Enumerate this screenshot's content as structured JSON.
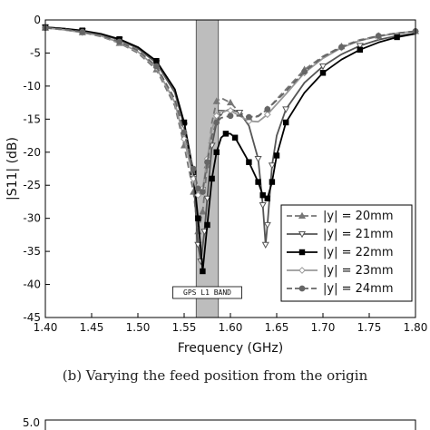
{
  "chart_data": {
    "type": "line",
    "xlabel": "Frequency (GHz)",
    "ylabel": "|S11| (dB)",
    "xlim": [
      1.4,
      1.8
    ],
    "ylim": [
      -45,
      0
    ],
    "xticks": [
      "1.40",
      "1.45",
      "1.50",
      "1.55",
      "1.60",
      "1.65",
      "1.70",
      "1.75",
      "1.80"
    ],
    "yticks": [
      "0",
      "-5",
      "-10",
      "-15",
      "-20",
      "-25",
      "-30",
      "-35",
      "-40",
      "-45"
    ],
    "legend_position": "bottom-right",
    "band": {
      "label": "GPS L1 BAND",
      "x_range": [
        1.563,
        1.587
      ]
    },
    "series": [
      {
        "name": "|y| = 20mm",
        "color": "#777777",
        "dash": "dash",
        "marker": "triangle-up",
        "x": [
          1.4,
          1.42,
          1.44,
          1.46,
          1.48,
          1.5,
          1.52,
          1.54,
          1.55,
          1.56,
          1.565,
          1.57,
          1.575,
          1.58,
          1.585,
          1.59,
          1.6,
          1.61,
          1.62,
          1.63,
          1.64,
          1.66,
          1.68,
          1.7,
          1.72,
          1.74,
          1.76,
          1.78,
          1.8
        ],
        "y": [
          -1.2,
          -1.5,
          -1.9,
          -2.5,
          -3.5,
          -5.0,
          -7.5,
          -13.0,
          -19.0,
          -26.0,
          -32.0,
          -29.0,
          -22.0,
          -15.5,
          -12.3,
          -11.8,
          -12.5,
          -14.0,
          -14.8,
          -14.6,
          -13.5,
          -10.5,
          -7.5,
          -5.5,
          -4.0,
          -3.0,
          -2.4,
          -2.0,
          -1.7
        ]
      },
      {
        "name": "|y| = 21mm",
        "color": "#555555",
        "dash": "solid",
        "marker": "triangle-down",
        "x": [
          1.4,
          1.42,
          1.44,
          1.46,
          1.48,
          1.5,
          1.52,
          1.54,
          1.55,
          1.56,
          1.565,
          1.568,
          1.572,
          1.575,
          1.58,
          1.585,
          1.59,
          1.6,
          1.61,
          1.62,
          1.63,
          1.635,
          1.638,
          1.64,
          1.645,
          1.65,
          1.66,
          1.68,
          1.7,
          1.72,
          1.74,
          1.76,
          1.78,
          1.8
        ],
        "y": [
          -1.1,
          -1.3,
          -1.7,
          -2.2,
          -3.0,
          -4.3,
          -6.5,
          -11.0,
          -16.0,
          -24.0,
          -34.0,
          -36.5,
          -32.0,
          -27.0,
          -19.0,
          -15.5,
          -14.0,
          -13.5,
          -14.0,
          -16.0,
          -21.0,
          -28.0,
          -34.0,
          -31.0,
          -22.0,
          -17.5,
          -13.5,
          -9.5,
          -7.0,
          -5.2,
          -3.9,
          -3.0,
          -2.4,
          -2.0
        ]
      },
      {
        "name": "|y| = 22mm",
        "color": "#000000",
        "dash": "solid",
        "marker": "square",
        "x": [
          1.4,
          1.42,
          1.44,
          1.46,
          1.48,
          1.5,
          1.52,
          1.54,
          1.55,
          1.56,
          1.565,
          1.57,
          1.575,
          1.58,
          1.585,
          1.59,
          1.595,
          1.6,
          1.605,
          1.61,
          1.62,
          1.63,
          1.635,
          1.64,
          1.645,
          1.65,
          1.66,
          1.68,
          1.7,
          1.72,
          1.74,
          1.76,
          1.78,
          1.8
        ],
        "y": [
          -1.1,
          -1.3,
          -1.6,
          -2.1,
          -2.9,
          -4.1,
          -6.2,
          -10.5,
          -15.5,
          -23.0,
          -30.0,
          -38.0,
          -31.0,
          -24.0,
          -20.0,
          -17.8,
          -17.2,
          -17.2,
          -17.8,
          -19.0,
          -21.5,
          -24.5,
          -26.5,
          -27.0,
          -24.5,
          -20.5,
          -15.5,
          -11.0,
          -8.0,
          -6.0,
          -4.5,
          -3.4,
          -2.6,
          -2.1
        ]
      },
      {
        "name": "|y| = 23mm",
        "color": "#999999",
        "dash": "solid",
        "marker": "diamond",
        "x": [
          1.4,
          1.42,
          1.44,
          1.46,
          1.48,
          1.5,
          1.52,
          1.54,
          1.55,
          1.56,
          1.565,
          1.57,
          1.575,
          1.58,
          1.585,
          1.59,
          1.6,
          1.61,
          1.62,
          1.63,
          1.64,
          1.66,
          1.68,
          1.7,
          1.72,
          1.74,
          1.76,
          1.78,
          1.8
        ],
        "y": [
          -1.2,
          -1.5,
          -1.9,
          -2.4,
          -3.4,
          -4.8,
          -7.2,
          -12.5,
          -18.0,
          -24.0,
          -26.5,
          -25.5,
          -21.0,
          -16.5,
          -14.5,
          -13.8,
          -13.7,
          -14.5,
          -15.3,
          -15.4,
          -14.3,
          -11.2,
          -8.0,
          -5.8,
          -4.2,
          -3.1,
          -2.5,
          -2.0,
          -1.7
        ]
      },
      {
        "name": "|y| = 24mm",
        "color": "#666666",
        "dash": "dash",
        "marker": "circle",
        "x": [
          1.4,
          1.42,
          1.44,
          1.46,
          1.48,
          1.5,
          1.52,
          1.54,
          1.55,
          1.56,
          1.565,
          1.57,
          1.575,
          1.58,
          1.585,
          1.59,
          1.6,
          1.61,
          1.62,
          1.63,
          1.64,
          1.66,
          1.68,
          1.7,
          1.72,
          1.74,
          1.76,
          1.78,
          1.8
        ],
        "y": [
          -1.2,
          -1.4,
          -1.8,
          -2.3,
          -3.3,
          -4.6,
          -7.0,
          -12.0,
          -17.0,
          -22.5,
          -25.5,
          -26.0,
          -21.5,
          -17.5,
          -15.5,
          -14.8,
          -14.5,
          -14.5,
          -14.7,
          -14.5,
          -13.5,
          -10.8,
          -7.8,
          -5.6,
          -4.1,
          -3.1,
          -2.4,
          -2.0,
          -1.7
        ]
      }
    ]
  },
  "caption": "(b) Varying the feed position from the origin",
  "bottom_chart": {
    "ytick_top": "5.0"
  }
}
